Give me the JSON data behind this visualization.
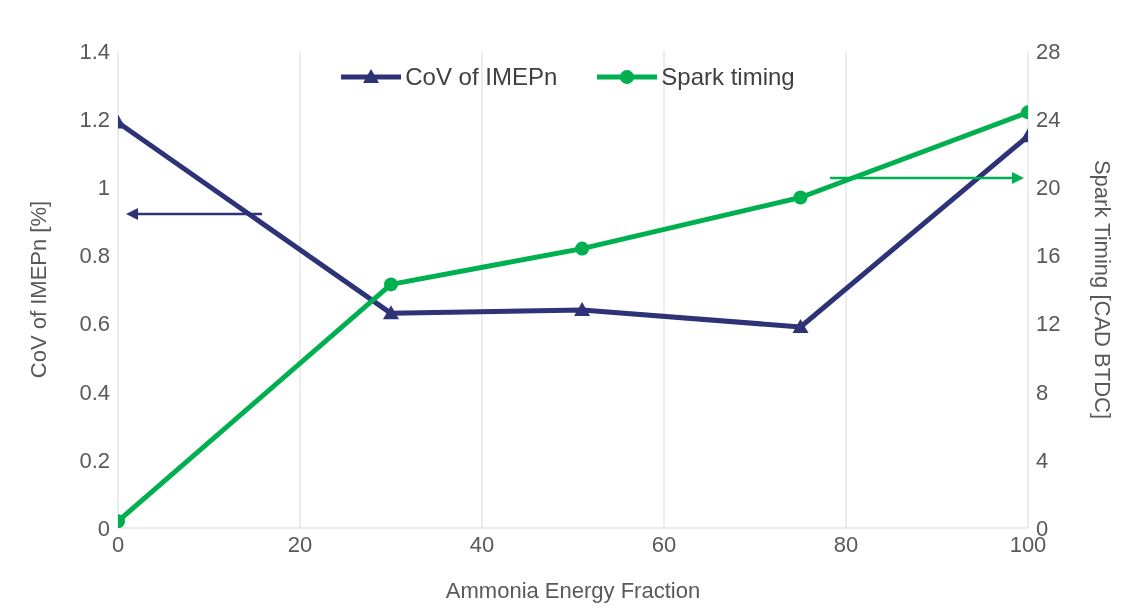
{
  "chart_data": {
    "type": "line",
    "xlabel": "Ammonia Energy Fraction",
    "ylabel": "CoV of IMEPn [%]",
    "y2label": "Spark Timing [CAD BTDC]",
    "x": [
      0,
      30,
      51,
      75,
      100
    ],
    "series": [
      {
        "name": "CoV of IMEPn",
        "color": "#2e3277",
        "values": [
          1.19,
          0.63,
          0.64,
          0.59,
          1.15
        ],
        "marker": "triangle"
      },
      {
        "name": "Spark timing",
        "color": "#00b050",
        "values": [
          0.4,
          14.3,
          16.4,
          19.4,
          24.4
        ],
        "marker": "circle",
        "axis": "y2"
      }
    ],
    "xlim": [
      0,
      100
    ],
    "xticks": [
      0,
      20,
      40,
      60,
      80,
      100
    ],
    "ylim": [
      0,
      1.4
    ],
    "yticks": [
      0,
      0.2,
      0.4,
      0.6,
      0.8,
      1,
      1.2,
      1.4
    ],
    "y2lim": [
      0,
      28
    ],
    "y2ticks": [
      0,
      4,
      8,
      12,
      16,
      20,
      24,
      28
    ],
    "grid": "x",
    "legend": "top"
  }
}
